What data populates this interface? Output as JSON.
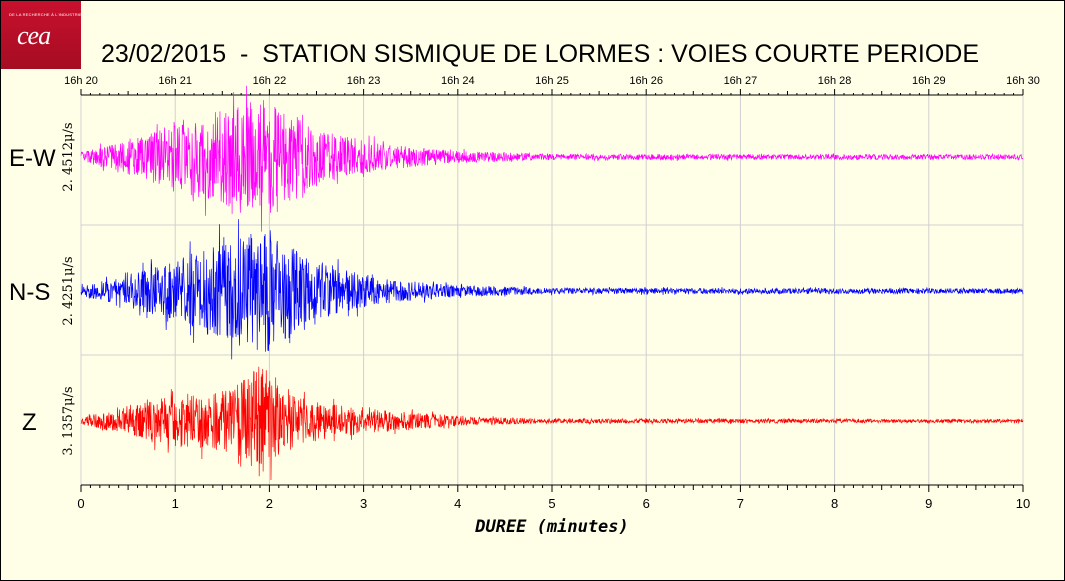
{
  "logo": {
    "text": "cea",
    "tagline": "DE LA RECHERCHE À L'INDUSTRIE"
  },
  "title": "23/02/2015  -  STATION SISMIQUE DE LORMES : VOIES COURTE PERIODE",
  "chart_data": {
    "type": "line",
    "xlabel": "DUREE (minutes)",
    "xlim": [
      0,
      10
    ],
    "x_ticks": [
      "0",
      "1",
      "2",
      "3",
      "4",
      "5",
      "6",
      "7",
      "8",
      "9",
      "10"
    ],
    "top_ticks": [
      "16h 20",
      "16h 21",
      "16h 22",
      "16h 23",
      "16h 24",
      "16h 25",
      "16h 26",
      "16h 27",
      "16h 28",
      "16h 29",
      "16h 30"
    ],
    "series": [
      {
        "name": "E-W",
        "scale": "2. 4512μ/s",
        "color": "#ff00ff",
        "peak_time_min": 2.05,
        "onset_min": 0.3,
        "envelope": [
          [
            0,
            0.08
          ],
          [
            0.4,
            0.25
          ],
          [
            1.0,
            0.55
          ],
          [
            1.6,
            0.85
          ],
          [
            2.05,
            1.0
          ],
          [
            2.5,
            0.45
          ],
          [
            3.2,
            0.22
          ],
          [
            4.0,
            0.1
          ],
          [
            5.0,
            0.05
          ],
          [
            10,
            0.04
          ]
        ]
      },
      {
        "name": "N-S",
        "scale": "2. 4251μ/s",
        "color": "#0000ff",
        "peak_time_min": 2.0,
        "onset_min": 0.3,
        "envelope": [
          [
            0,
            0.08
          ],
          [
            0.4,
            0.22
          ],
          [
            1.0,
            0.5
          ],
          [
            1.6,
            0.85
          ],
          [
            2.0,
            1.0
          ],
          [
            2.5,
            0.45
          ],
          [
            3.2,
            0.2
          ],
          [
            4.0,
            0.09
          ],
          [
            5.0,
            0.05
          ],
          [
            10,
            0.04
          ]
        ]
      },
      {
        "name": "Z",
        "scale": "3. 1357μ/s",
        "color": "#ff0000",
        "peak_time_min": 1.92,
        "onset_min": 0.3,
        "envelope": [
          [
            0,
            0.06
          ],
          [
            0.4,
            0.2
          ],
          [
            1.0,
            0.45
          ],
          [
            1.6,
            0.55
          ],
          [
            1.92,
            1.0
          ],
          [
            2.3,
            0.4
          ],
          [
            3.0,
            0.22
          ],
          [
            4.0,
            0.08
          ],
          [
            5.0,
            0.04
          ],
          [
            10,
            0.03
          ]
        ]
      }
    ],
    "grid": true
  },
  "colors": {
    "background": "#ffffe8",
    "grid": "#d0d0d0"
  }
}
